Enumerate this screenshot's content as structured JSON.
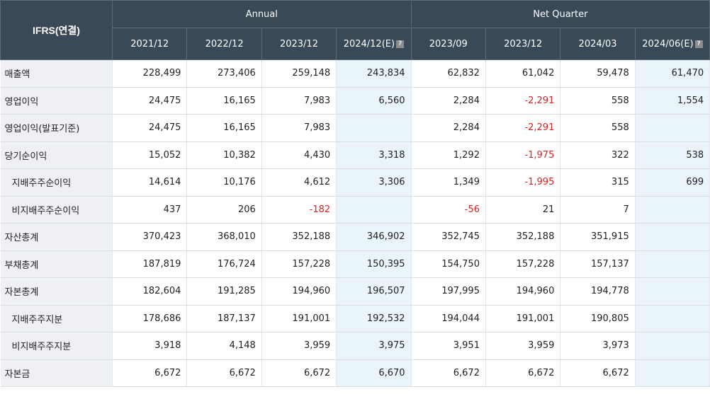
{
  "header": {
    "corner_label": "IFRS(연결)",
    "group_annual": "Annual",
    "group_quarter": "Net Quarter",
    "periods": [
      "2021/12",
      "2022/12",
      "2023/12",
      "2024/12(E)",
      "2023/09",
      "2023/12",
      "2024/03",
      "2024/06(E)"
    ],
    "estimate_icon": "?"
  },
  "rows": [
    {
      "label": "매출액",
      "values": [
        "228,499",
        "273,406",
        "259,148",
        "243,834",
        "62,832",
        "61,042",
        "59,478",
        "61,470"
      ]
    },
    {
      "label": "영업이익",
      "values": [
        "24,475",
        "16,165",
        "7,983",
        "6,560",
        "2,284",
        "-2,291",
        "558",
        "1,554"
      ]
    },
    {
      "label": "영업이익(발표기준)",
      "values": [
        "24,475",
        "16,165",
        "7,983",
        "",
        "2,284",
        "-2,291",
        "558",
        ""
      ]
    },
    {
      "label": "당기순이익",
      "values": [
        "15,052",
        "10,382",
        "4,430",
        "3,318",
        "1,292",
        "-1,975",
        "322",
        "538"
      ]
    },
    {
      "label": "지배주주순이익",
      "values": [
        "14,614",
        "10,176",
        "4,612",
        "3,306",
        "1,349",
        "-1,995",
        "315",
        "699"
      ]
    },
    {
      "label": "비지배주주순이익",
      "values": [
        "437",
        "206",
        "-182",
        "",
        "-56",
        "21",
        "7",
        ""
      ]
    },
    {
      "label": "자산총계",
      "values": [
        "370,423",
        "368,010",
        "352,188",
        "346,902",
        "352,745",
        "352,188",
        "351,915",
        ""
      ]
    },
    {
      "label": "부채총계",
      "values": [
        "187,819",
        "176,724",
        "157,228",
        "150,395",
        "154,750",
        "157,228",
        "157,137",
        ""
      ]
    },
    {
      "label": "자본총계",
      "values": [
        "182,604",
        "191,285",
        "194,960",
        "196,507",
        "197,995",
        "194,960",
        "194,778",
        ""
      ]
    },
    {
      "label": "지배주주지분",
      "values": [
        "178,686",
        "187,137",
        "191,001",
        "192,532",
        "194,044",
        "191,001",
        "190,805",
        ""
      ]
    },
    {
      "label": "비지배주주지분",
      "values": [
        "3,918",
        "4,148",
        "3,959",
        "3,975",
        "3,951",
        "3,959",
        "3,973",
        ""
      ]
    },
    {
      "label": "자본금",
      "values": [
        "6,672",
        "6,672",
        "6,672",
        "6,670",
        "6,672",
        "6,672",
        "6,672",
        ""
      ]
    }
  ],
  "colors": {
    "header_bg": "#3a4957",
    "label_bg": "#eef0f4",
    "estimate_bg": "#e9f5fa",
    "negative": "#e02020"
  }
}
